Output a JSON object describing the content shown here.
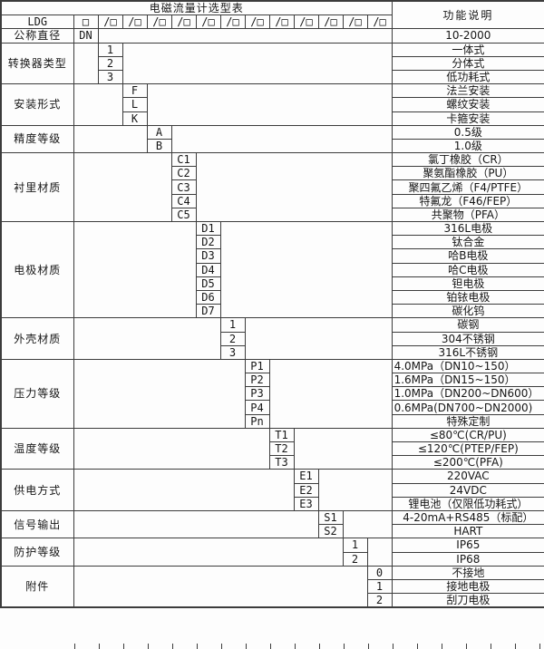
{
  "title": "电磁流量计选型表",
  "function_header": "功能说明",
  "model_code_row": {
    "prefix": "LDG",
    "lead_box": "□",
    "segment_box": "/□",
    "segment_count": 12
  },
  "groups": [
    {
      "label": "公称直径",
      "code_col": 0,
      "rows": [
        {
          "code": "DN",
          "desc": "10-2000"
        }
      ]
    },
    {
      "label": "转换器类型",
      "code_col": 1,
      "rows": [
        {
          "code": "1",
          "desc": "一体式"
        },
        {
          "code": "2",
          "desc": "分体式"
        },
        {
          "code": "3",
          "desc": "低功耗式"
        }
      ]
    },
    {
      "label": "安装形式",
      "code_col": 2,
      "rows": [
        {
          "code": "F",
          "desc": "法兰安装"
        },
        {
          "code": "L",
          "desc": "螺纹安装"
        },
        {
          "code": "K",
          "desc": "卡箍安装"
        }
      ]
    },
    {
      "label": "精度等级",
      "code_col": 3,
      "rows": [
        {
          "code": "A",
          "desc": "0.5级"
        },
        {
          "code": "B",
          "desc": "1.0级"
        }
      ]
    },
    {
      "label": "衬里材质",
      "code_col": 4,
      "rows": [
        {
          "code": "C1",
          "desc": "氯丁橡胶（CR）"
        },
        {
          "code": "C2",
          "desc": "聚氨酯橡胶（PU）"
        },
        {
          "code": "C3",
          "desc": "聚四氟乙烯（F4/PTFE）"
        },
        {
          "code": "C4",
          "desc": "特氟龙（F46/FEP）"
        },
        {
          "code": "C5",
          "desc": "共聚物（PFA）"
        }
      ]
    },
    {
      "label": "电极材质",
      "code_col": 5,
      "rows": [
        {
          "code": "D1",
          "desc": "316L电极"
        },
        {
          "code": "D2",
          "desc": "钛合金"
        },
        {
          "code": "D3",
          "desc": "哈B电极"
        },
        {
          "code": "D4",
          "desc": "哈C电极"
        },
        {
          "code": "D5",
          "desc": "钽电极"
        },
        {
          "code": "D6",
          "desc": "铂铱电极"
        },
        {
          "code": "D7",
          "desc": "碳化钨"
        }
      ]
    },
    {
      "label": "外壳材质",
      "code_col": 6,
      "rows": [
        {
          "code": "1",
          "desc": "碳钢"
        },
        {
          "code": "2",
          "desc": "304不锈钢"
        },
        {
          "code": "3",
          "desc": "316L不锈钢"
        }
      ]
    },
    {
      "label": "压力等级",
      "code_col": 7,
      "rows": [
        {
          "code": "P1",
          "desc": "4.0MPa（DN10~150）",
          "align": "left"
        },
        {
          "code": "P2",
          "desc": "1.6MPa（DN15~150）",
          "align": "left"
        },
        {
          "code": "P3",
          "desc": "1.0MPa（DN200~DN600）",
          "align": "left"
        },
        {
          "code": "P4",
          "desc": "0.6MPa(DN700~DN2000)",
          "align": "left"
        },
        {
          "code": "Pn",
          "desc": "特殊定制"
        }
      ]
    },
    {
      "label": "温度等级",
      "code_col": 8,
      "rows": [
        {
          "code": "T1",
          "desc": "≤80℃(CR/PU)"
        },
        {
          "code": "T2",
          "desc": "≤120℃(PTEP/FEP)"
        },
        {
          "code": "T3",
          "desc": "≤200℃(PFA)"
        }
      ]
    },
    {
      "label": "供电方式",
      "code_col": 9,
      "rows": [
        {
          "code": "E1",
          "desc": "220VAC"
        },
        {
          "code": "E2",
          "desc": "24VDC"
        },
        {
          "code": "E3",
          "desc": "锂电池（仅限低功耗式）"
        }
      ]
    },
    {
      "label": "信号输出",
      "code_col": 10,
      "rows": [
        {
          "code": "S1",
          "desc": "4-20mA+RS485（标配）"
        },
        {
          "code": "S2",
          "desc": "HART"
        }
      ]
    },
    {
      "label": "防护等级",
      "code_col": 11,
      "rows": [
        {
          "code": "1",
          "desc": "IP65"
        },
        {
          "code": "2",
          "desc": "IP68"
        }
      ]
    },
    {
      "label": "附件",
      "code_col": 12,
      "rows": [
        {
          "code": "0",
          "desc": "不接地"
        },
        {
          "code": "1",
          "desc": "接地电极"
        },
        {
          "code": "2",
          "desc": "刮刀电极"
        }
      ]
    }
  ],
  "colors": {
    "line": "#3c3c3c",
    "text": "#161616",
    "background": "#fdfdfd"
  }
}
